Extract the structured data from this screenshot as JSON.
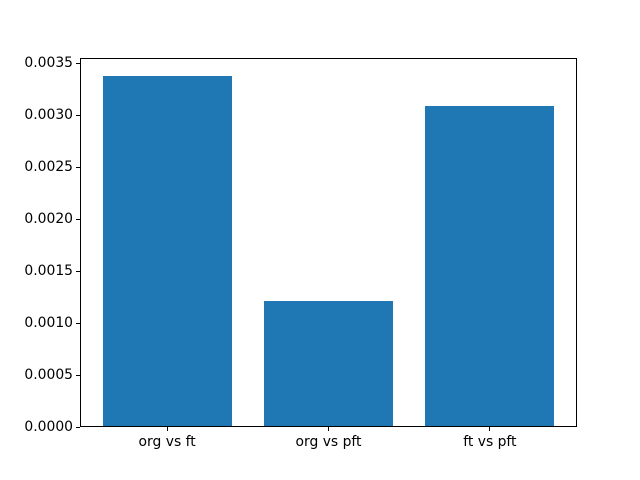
{
  "chart_data": {
    "type": "bar",
    "title": "",
    "xlabel": "",
    "ylabel": "",
    "categories": [
      "org vs ft",
      "org vs pft",
      "ft vs pft"
    ],
    "values": [
      0.00338,
      0.00121,
      0.00309
    ],
    "bar_color": "#1f77b4",
    "axis_color": "#000000",
    "background_color": "#ffffff",
    "ylim": [
      0,
      0.003549
    ],
    "xlim": [
      -0.54,
      2.54
    ],
    "bar_width_units": 0.8,
    "x": [
      0,
      1,
      2
    ],
    "yticks": [
      0.0,
      0.0005,
      0.001,
      0.0015,
      0.002,
      0.0025,
      0.003,
      0.0035
    ],
    "ytick_labels": [
      "0.0000",
      "0.0005",
      "0.0010",
      "0.0015",
      "0.0020",
      "0.0025",
      "0.0030",
      "0.0035"
    ],
    "grid": false,
    "legend": null
  }
}
